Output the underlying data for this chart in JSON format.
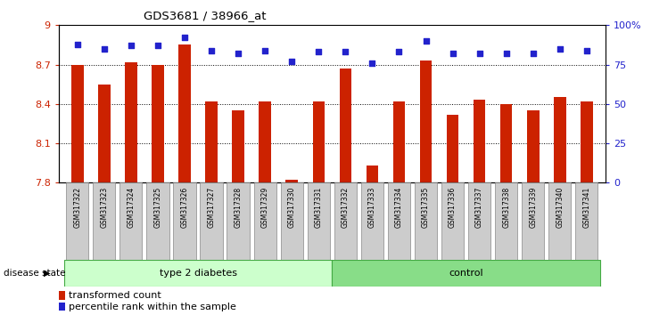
{
  "title": "GDS3681 / 38966_at",
  "samples": [
    "GSM317322",
    "GSM317323",
    "GSM317324",
    "GSM317325",
    "GSM317326",
    "GSM317327",
    "GSM317328",
    "GSM317329",
    "GSM317330",
    "GSM317331",
    "GSM317332",
    "GSM317333",
    "GSM317334",
    "GSM317335",
    "GSM317336",
    "GSM317337",
    "GSM317338",
    "GSM317339",
    "GSM317340",
    "GSM317341"
  ],
  "transformed_count": [
    8.7,
    8.55,
    8.72,
    8.7,
    8.85,
    8.42,
    8.35,
    8.42,
    7.82,
    8.42,
    8.67,
    7.93,
    8.42,
    8.73,
    8.32,
    8.43,
    8.4,
    8.35,
    8.45,
    8.42
  ],
  "percentile_rank": [
    88,
    85,
    87,
    87,
    92,
    84,
    82,
    84,
    77,
    83,
    83,
    76,
    83,
    90,
    82,
    82,
    82,
    82,
    85,
    84
  ],
  "group_labels": [
    "type 2 diabetes",
    "control"
  ],
  "n_type2": 10,
  "n_control": 10,
  "ylim_left": [
    7.8,
    9.0
  ],
  "ylim_right": [
    0,
    100
  ],
  "yticks_left": [
    7.8,
    8.1,
    8.4,
    8.7,
    9.0
  ],
  "ytick_labels_left": [
    "7.8",
    "8.1",
    "8.4",
    "8.7",
    "9"
  ],
  "yticks_right": [
    0,
    25,
    50,
    75,
    100
  ],
  "ytick_labels_right": [
    "0",
    "25",
    "50",
    "75",
    "100%"
  ],
  "bar_color": "#cc2200",
  "dot_color": "#2222cc",
  "group1_color": "#ccffcc",
  "group2_color": "#88dd88",
  "tick_bg_color": "#cccccc",
  "border_color": "#888888",
  "legend_items": [
    "transformed count",
    "percentile rank within the sample"
  ],
  "legend_colors": [
    "#cc2200",
    "#2222cc"
  ],
  "grid_lines": [
    8.1,
    8.4,
    8.7
  ],
  "bar_width": 0.45
}
